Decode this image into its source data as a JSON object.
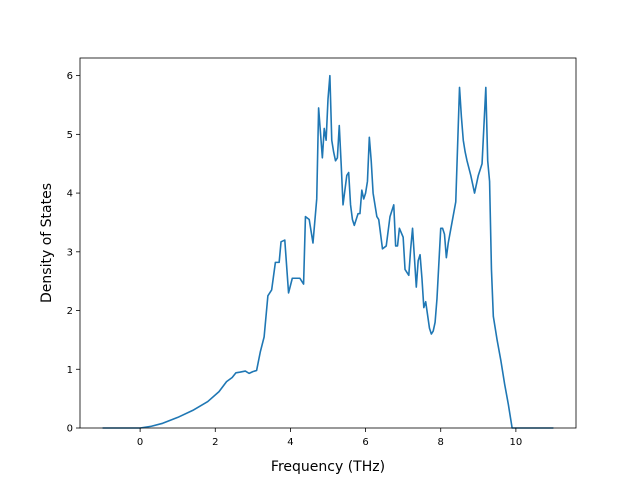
{
  "chart_data": {
    "type": "line",
    "title": "",
    "xlabel": "Frequency (THz)",
    "ylabel": "Density of States",
    "xlim": [
      -1.6,
      11.6
    ],
    "ylim": [
      0,
      6.3
    ],
    "xticks": [
      0,
      2,
      4,
      6,
      8,
      10
    ],
    "yticks": [
      0,
      1,
      2,
      3,
      4,
      5,
      6
    ],
    "grid": false,
    "legend": "none",
    "series": [
      {
        "color": "#1f77b4",
        "x": [
          -1.0,
          0.0,
          0.3,
          0.6,
          1.0,
          1.4,
          1.8,
          2.1,
          2.3,
          2.45,
          2.55,
          2.65,
          2.8,
          2.9,
          3.0,
          3.1,
          3.2,
          3.3,
          3.4,
          3.5,
          3.6,
          3.7,
          3.75,
          3.85,
          3.95,
          4.05,
          4.15,
          4.25,
          4.35,
          4.4,
          4.5,
          4.6,
          4.7,
          4.75,
          4.85,
          4.9,
          4.95,
          5.0,
          5.05,
          5.1,
          5.15,
          5.2,
          5.25,
          5.3,
          5.35,
          5.4,
          5.5,
          5.55,
          5.6,
          5.65,
          5.7,
          5.8,
          5.85,
          5.9,
          5.95,
          6.0,
          6.05,
          6.1,
          6.15,
          6.2,
          6.3,
          6.35,
          6.45,
          6.55,
          6.65,
          6.75,
          6.8,
          6.85,
          6.9,
          7.0,
          7.05,
          7.15,
          7.2,
          7.25,
          7.35,
          7.4,
          7.45,
          7.5,
          7.55,
          7.6,
          7.7,
          7.75,
          7.8,
          7.85,
          7.9,
          8.0,
          8.05,
          8.1,
          8.15,
          8.2,
          8.3,
          8.4,
          8.5,
          8.55,
          8.6,
          8.65,
          8.7,
          8.8,
          8.9,
          9.0,
          9.1,
          9.2,
          9.25,
          9.3,
          9.35,
          9.4,
          9.45,
          9.5,
          9.6,
          9.7,
          9.8,
          9.9,
          10.0,
          11.0
        ],
        "y": [
          0.0,
          0.0,
          0.03,
          0.08,
          0.18,
          0.3,
          0.45,
          0.62,
          0.79,
          0.86,
          0.94,
          0.95,
          0.97,
          0.93,
          0.96,
          0.98,
          1.3,
          1.55,
          2.25,
          2.35,
          2.82,
          2.82,
          3.17,
          3.2,
          2.3,
          2.55,
          2.55,
          2.55,
          2.45,
          3.6,
          3.55,
          3.15,
          3.9,
          5.45,
          4.6,
          5.1,
          4.9,
          5.6,
          6.0,
          4.9,
          4.7,
          4.55,
          4.6,
          5.15,
          4.5,
          3.8,
          4.3,
          4.35,
          3.8,
          3.55,
          3.45,
          3.65,
          3.65,
          4.05,
          3.9,
          4.0,
          4.2,
          4.95,
          4.55,
          4.0,
          3.6,
          3.55,
          3.05,
          3.1,
          3.6,
          3.8,
          3.1,
          3.1,
          3.4,
          3.25,
          2.7,
          2.6,
          3.05,
          3.4,
          2.4,
          2.85,
          2.95,
          2.55,
          2.05,
          2.15,
          1.7,
          1.6,
          1.65,
          1.8,
          2.2,
          3.4,
          3.4,
          3.3,
          2.9,
          3.15,
          3.5,
          3.85,
          5.8,
          5.3,
          4.9,
          4.7,
          4.55,
          4.3,
          4.0,
          4.3,
          4.5,
          5.8,
          4.55,
          4.2,
          2.7,
          1.9,
          1.7,
          1.5,
          1.15,
          0.75,
          0.4,
          0.0,
          0.0,
          0.0
        ]
      }
    ]
  }
}
